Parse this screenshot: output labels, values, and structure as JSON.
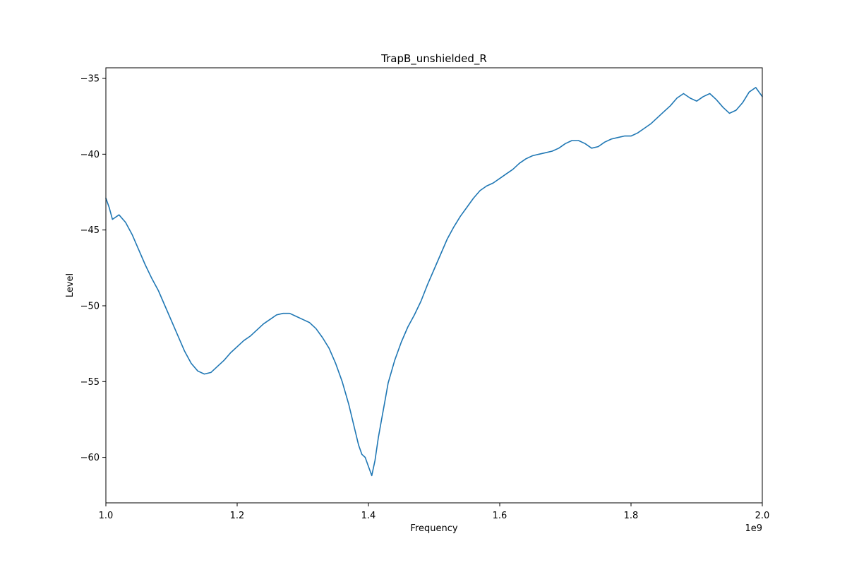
{
  "chart_data": {
    "type": "line",
    "title": "TrapB_unshielded_R",
    "xlabel": "Frequency",
    "ylabel": "Level",
    "x_offset_label": "1e9",
    "xlim": [
      1.0,
      2.0
    ],
    "ylim": [
      -63.0,
      -34.3
    ],
    "x_ticks": [
      1.0,
      1.2,
      1.4,
      1.6,
      1.8,
      2.0
    ],
    "x_tick_labels": [
      "1.0",
      "1.2",
      "1.4",
      "1.6",
      "1.8",
      "2.0"
    ],
    "y_ticks": [
      -35,
      -40,
      -45,
      -50,
      -55,
      -60
    ],
    "y_tick_labels": [
      "−35",
      "−40",
      "−45",
      "−50",
      "−55",
      "−60"
    ],
    "grid": false,
    "legend": "none",
    "series": [
      {
        "color": "#1f77b4",
        "x": [
          1.0,
          1.005,
          1.01,
          1.02,
          1.03,
          1.04,
          1.05,
          1.06,
          1.07,
          1.08,
          1.09,
          1.1,
          1.11,
          1.12,
          1.13,
          1.14,
          1.15,
          1.16,
          1.17,
          1.18,
          1.19,
          1.2,
          1.21,
          1.22,
          1.23,
          1.24,
          1.25,
          1.26,
          1.27,
          1.28,
          1.29,
          1.3,
          1.31,
          1.32,
          1.33,
          1.34,
          1.35,
          1.36,
          1.37,
          1.38,
          1.385,
          1.39,
          1.395,
          1.4,
          1.405,
          1.41,
          1.415,
          1.42,
          1.425,
          1.43,
          1.44,
          1.45,
          1.46,
          1.47,
          1.48,
          1.49,
          1.5,
          1.51,
          1.52,
          1.53,
          1.54,
          1.55,
          1.56,
          1.57,
          1.58,
          1.59,
          1.6,
          1.61,
          1.62,
          1.63,
          1.64,
          1.65,
          1.66,
          1.67,
          1.68,
          1.69,
          1.7,
          1.71,
          1.72,
          1.73,
          1.74,
          1.75,
          1.76,
          1.77,
          1.78,
          1.79,
          1.8,
          1.81,
          1.82,
          1.83,
          1.84,
          1.85,
          1.86,
          1.87,
          1.88,
          1.89,
          1.9,
          1.91,
          1.92,
          1.93,
          1.94,
          1.95,
          1.96,
          1.97,
          1.98,
          1.99,
          2.0
        ],
        "values": [
          -42.9,
          -43.5,
          -44.3,
          -44.0,
          -44.5,
          -45.3,
          -46.3,
          -47.3,
          -48.2,
          -49.0,
          -50.0,
          -51.0,
          -52.0,
          -53.0,
          -53.8,
          -54.3,
          -54.5,
          -54.4,
          -54.0,
          -53.6,
          -53.1,
          -52.7,
          -52.3,
          -52.0,
          -51.6,
          -51.2,
          -50.9,
          -50.6,
          -50.5,
          -50.5,
          -50.7,
          -50.9,
          -51.1,
          -51.5,
          -52.1,
          -52.8,
          -53.8,
          -55.0,
          -56.5,
          -58.3,
          -59.2,
          -59.8,
          -60.0,
          -60.6,
          -61.2,
          -60.2,
          -58.7,
          -57.5,
          -56.3,
          -55.1,
          -53.6,
          -52.4,
          -51.4,
          -50.6,
          -49.7,
          -48.6,
          -47.6,
          -46.6,
          -45.6,
          -44.8,
          -44.1,
          -43.5,
          -42.9,
          -42.4,
          -42.1,
          -41.9,
          -41.6,
          -41.3,
          -41.0,
          -40.6,
          -40.3,
          -40.1,
          -40.0,
          -39.9,
          -39.8,
          -39.6,
          -39.3,
          -39.1,
          -39.1,
          -39.3,
          -39.6,
          -39.5,
          -39.2,
          -39.0,
          -38.9,
          -38.8,
          -38.8,
          -38.6,
          -38.3,
          -38.0,
          -37.6,
          -37.2,
          -36.8,
          -36.3,
          -36.0,
          -36.3,
          -36.5,
          -36.2,
          -36.0,
          -36.4,
          -36.9,
          -37.3,
          -37.1,
          -36.6,
          -35.9,
          -35.6,
          -36.2
        ]
      }
    ]
  }
}
